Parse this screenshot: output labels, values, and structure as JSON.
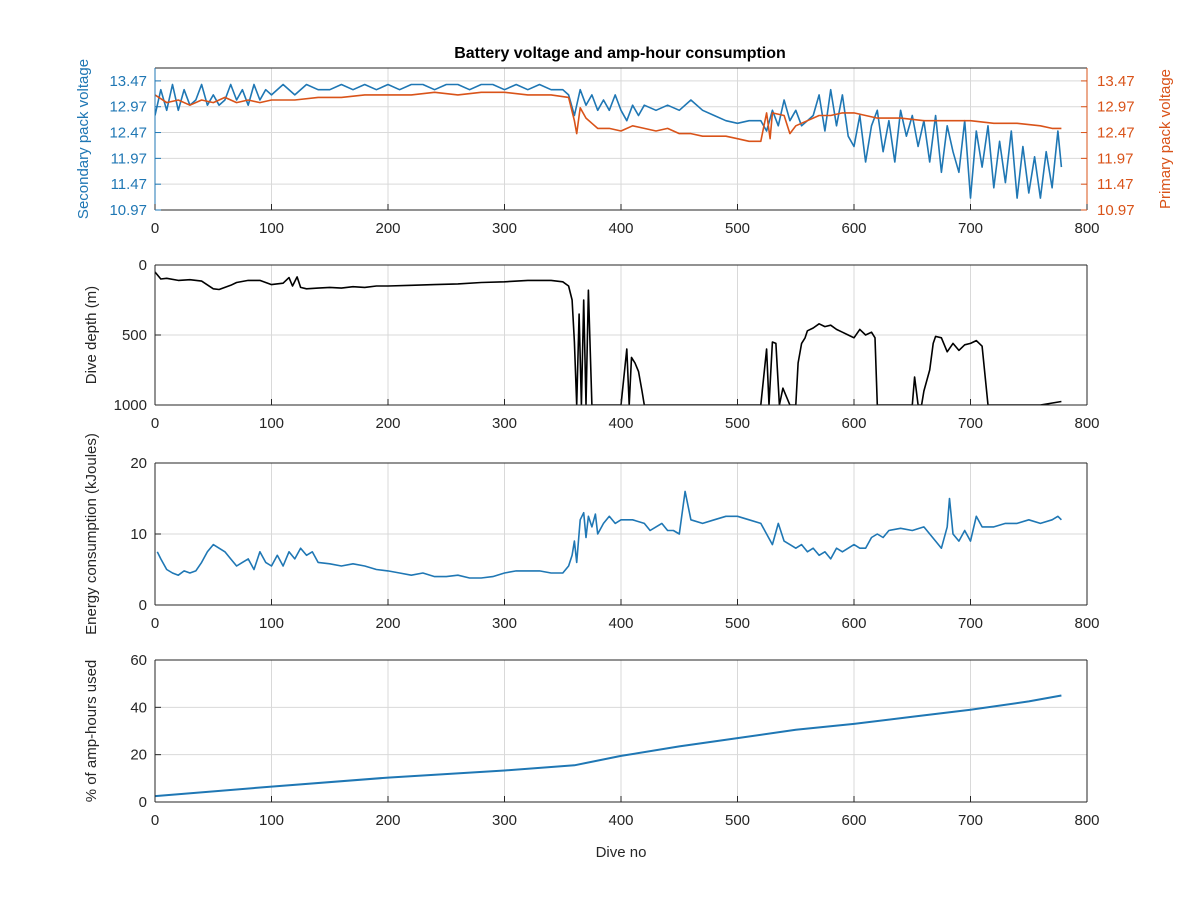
{
  "colors": {
    "blue": "#1f77b4",
    "orange": "#d95319",
    "black": "#000000",
    "grid": "#d9d9d9",
    "axis": "#262626"
  },
  "chart_data": [
    {
      "type": "line",
      "title": "Battery voltage and amp-hour consumption",
      "xlabel": "",
      "xlim": [
        0,
        800
      ],
      "xticks": [
        0,
        100,
        200,
        300,
        400,
        500,
        600,
        700,
        800
      ],
      "grid": true,
      "y_left": {
        "label": "Secondary pack voltage",
        "lim": [
          10.97,
          13.72
        ],
        "ticks": [
          10.97,
          11.47,
          11.97,
          12.47,
          12.97,
          13.47
        ],
        "color": "#1f77b4"
      },
      "y_right": {
        "label": "Primary pack voltage",
        "lim": [
          10.97,
          13.72
        ],
        "ticks": [
          10.97,
          11.47,
          11.97,
          12.47,
          12.97,
          13.47
        ],
        "color": "#d95319"
      },
      "series": [
        {
          "axis": "left",
          "color": "#1f77b4",
          "x": [
            0,
            5,
            10,
            15,
            20,
            25,
            30,
            35,
            40,
            45,
            50,
            55,
            60,
            65,
            70,
            75,
            80,
            85,
            90,
            95,
            100,
            110,
            120,
            130,
            140,
            150,
            160,
            170,
            180,
            190,
            200,
            210,
            220,
            230,
            240,
            250,
            260,
            270,
            280,
            290,
            300,
            310,
            320,
            330,
            340,
            350,
            355,
            360,
            365,
            370,
            375,
            380,
            385,
            390,
            395,
            400,
            405,
            410,
            415,
            420,
            430,
            440,
            450,
            460,
            470,
            480,
            490,
            500,
            510,
            520,
            525,
            530,
            535,
            540,
            545,
            550,
            555,
            560,
            565,
            570,
            575,
            580,
            585,
            590,
            595,
            600,
            605,
            610,
            615,
            620,
            625,
            630,
            635,
            640,
            645,
            650,
            655,
            660,
            665,
            670,
            675,
            680,
            685,
            690,
            695,
            700,
            705,
            710,
            715,
            720,
            725,
            730,
            735,
            740,
            745,
            750,
            755,
            760,
            765,
            770,
            775,
            778
          ],
          "y": [
            12.8,
            13.3,
            12.9,
            13.4,
            12.9,
            13.3,
            13.0,
            13.1,
            13.4,
            13.0,
            13.2,
            13.0,
            13.1,
            13.4,
            13.1,
            13.3,
            13.0,
            13.4,
            13.1,
            13.3,
            13.2,
            13.4,
            13.2,
            13.4,
            13.3,
            13.3,
            13.4,
            13.3,
            13.4,
            13.3,
            13.4,
            13.3,
            13.4,
            13.4,
            13.3,
            13.4,
            13.4,
            13.3,
            13.4,
            13.4,
            13.3,
            13.4,
            13.3,
            13.4,
            13.3,
            13.3,
            13.2,
            12.8,
            13.3,
            13.0,
            13.2,
            12.9,
            13.1,
            12.9,
            13.2,
            12.9,
            12.7,
            13.0,
            12.8,
            13.0,
            12.9,
            13.0,
            12.9,
            13.1,
            12.9,
            12.8,
            12.7,
            12.65,
            12.7,
            12.7,
            12.5,
            12.9,
            12.6,
            13.1,
            12.7,
            12.9,
            12.6,
            12.7,
            12.8,
            13.2,
            12.5,
            13.3,
            12.6,
            13.2,
            12.4,
            12.2,
            12.8,
            11.9,
            12.6,
            12.9,
            12.1,
            12.7,
            11.9,
            12.9,
            12.4,
            12.8,
            12.2,
            12.7,
            11.9,
            12.8,
            11.7,
            12.6,
            12.1,
            11.7,
            12.7,
            11.2,
            12.5,
            11.8,
            12.6,
            11.4,
            12.3,
            11.5,
            12.5,
            11.2,
            12.2,
            11.3,
            12.0,
            11.2,
            12.1,
            11.4,
            12.5,
            11.8
          ]
        },
        {
          "axis": "right",
          "color": "#d95319",
          "x": [
            0,
            10,
            20,
            30,
            40,
            50,
            60,
            70,
            80,
            90,
            100,
            120,
            140,
            160,
            180,
            200,
            220,
            240,
            260,
            280,
            300,
            320,
            340,
            355,
            360,
            362,
            365,
            370,
            375,
            380,
            390,
            400,
            410,
            420,
            430,
            440,
            450,
            460,
            470,
            480,
            490,
            500,
            510,
            520,
            525,
            528,
            530,
            540,
            545,
            550,
            560,
            570,
            580,
            590,
            600,
            620,
            640,
            660,
            680,
            700,
            720,
            740,
            760,
            770,
            778
          ],
          "y": [
            13.2,
            13.05,
            13.1,
            13.0,
            13.1,
            13.05,
            13.15,
            13.05,
            13.1,
            13.05,
            13.1,
            13.1,
            13.15,
            13.15,
            13.2,
            13.2,
            13.2,
            13.25,
            13.2,
            13.25,
            13.25,
            13.2,
            13.2,
            13.15,
            12.7,
            12.45,
            12.95,
            12.75,
            12.65,
            12.55,
            12.55,
            12.5,
            12.6,
            12.55,
            12.5,
            12.55,
            12.45,
            12.45,
            12.4,
            12.4,
            12.4,
            12.35,
            12.3,
            12.3,
            12.85,
            12.35,
            12.85,
            12.8,
            12.45,
            12.6,
            12.7,
            12.8,
            12.8,
            12.85,
            12.85,
            12.75,
            12.75,
            12.7,
            12.7,
            12.7,
            12.65,
            12.65,
            12.6,
            12.55,
            12.55
          ]
        }
      ]
    },
    {
      "type": "line",
      "title": "",
      "xlabel": "",
      "ylabel": "Dive depth (m)",
      "xlim": [
        0,
        800
      ],
      "xticks": [
        0,
        100,
        200,
        300,
        400,
        500,
        600,
        700,
        800
      ],
      "ylim": [
        0,
        1000
      ],
      "yticks": [
        0,
        500,
        1000
      ],
      "y_reversed": true,
      "grid": true,
      "series": [
        {
          "color": "#000000",
          "x": [
            0,
            5,
            10,
            20,
            30,
            40,
            50,
            55,
            60,
            65,
            70,
            80,
            90,
            100,
            110,
            115,
            118,
            122,
            125,
            130,
            140,
            150,
            160,
            170,
            180,
            190,
            200,
            220,
            240,
            260,
            280,
            300,
            320,
            340,
            350,
            355,
            358,
            360,
            362,
            364,
            366,
            368,
            370,
            372,
            375,
            378,
            380,
            390,
            400,
            405,
            407,
            409,
            412,
            415,
            418,
            420,
            430,
            440,
            460,
            480,
            500,
            520,
            525,
            527,
            530,
            533,
            536,
            539,
            545,
            550,
            552,
            555,
            558,
            560,
            565,
            570,
            575,
            580,
            585,
            590,
            595,
            600,
            605,
            610,
            615,
            618,
            620,
            630,
            640,
            650,
            652,
            655,
            658,
            660,
            665,
            668,
            670,
            675,
            680,
            685,
            690,
            695,
            700,
            705,
            710,
            715,
            718,
            720,
            740,
            760,
            778
          ],
          "y": [
            50,
            100,
            95,
            110,
            105,
            115,
            170,
            175,
            160,
            145,
            125,
            110,
            110,
            140,
            130,
            90,
            150,
            85,
            160,
            170,
            165,
            160,
            165,
            155,
            160,
            150,
            150,
            145,
            140,
            135,
            125,
            120,
            110,
            110,
            120,
            150,
            250,
            550,
            1000,
            350,
            1000,
            250,
            1000,
            180,
            1000,
            1000,
            1000,
            1000,
            1000,
            600,
            1000,
            660,
            700,
            760,
            900,
            1000,
            1000,
            1000,
            1000,
            1000,
            1000,
            1000,
            600,
            1000,
            550,
            560,
            1000,
            880,
            1000,
            1000,
            700,
            560,
            520,
            470,
            450,
            420,
            440,
            430,
            460,
            480,
            500,
            520,
            460,
            500,
            480,
            520,
            1000,
            1000,
            1000,
            1000,
            800,
            1000,
            1000,
            900,
            750,
            560,
            510,
            520,
            620,
            560,
            610,
            570,
            560,
            540,
            580,
            1000,
            1000,
            1000,
            1000,
            1000,
            975
          ]
        }
      ]
    },
    {
      "type": "line",
      "title": "",
      "xlabel": "",
      "ylabel": "Energy consumption (kJoules)",
      "xlim": [
        0,
        800
      ],
      "xticks": [
        0,
        100,
        200,
        300,
        400,
        500,
        600,
        700,
        800
      ],
      "ylim": [
        0,
        20
      ],
      "yticks": [
        0,
        10,
        20
      ],
      "grid": true,
      "series": [
        {
          "color": "#1f77b4",
          "x": [
            2,
            5,
            10,
            15,
            20,
            25,
            30,
            35,
            40,
            45,
            50,
            55,
            60,
            65,
            70,
            75,
            80,
            85,
            90,
            95,
            100,
            105,
            110,
            115,
            120,
            125,
            130,
            135,
            140,
            150,
            160,
            170,
            180,
            190,
            200,
            210,
            220,
            230,
            240,
            250,
            260,
            270,
            280,
            290,
            300,
            310,
            320,
            330,
            340,
            350,
            355,
            358,
            360,
            362,
            365,
            368,
            370,
            372,
            375,
            378,
            380,
            385,
            390,
            395,
            400,
            410,
            420,
            425,
            430,
            435,
            440,
            445,
            450,
            455,
            460,
            470,
            480,
            490,
            500,
            510,
            520,
            525,
            530,
            535,
            540,
            545,
            550,
            555,
            560,
            565,
            570,
            575,
            580,
            585,
            590,
            595,
            600,
            605,
            610,
            615,
            620,
            625,
            630,
            640,
            650,
            660,
            670,
            675,
            680,
            682,
            685,
            690,
            695,
            700,
            705,
            710,
            720,
            730,
            740,
            750,
            760,
            770,
            775,
            778
          ],
          "y": [
            7.5,
            6.5,
            5.0,
            4.5,
            4.2,
            4.8,
            4.5,
            4.8,
            6.0,
            7.5,
            8.5,
            8.0,
            7.5,
            6.5,
            5.5,
            6.0,
            6.5,
            5.0,
            7.5,
            6.0,
            5.5,
            7.0,
            5.5,
            7.5,
            6.5,
            8.0,
            7.0,
            7.5,
            6.0,
            5.8,
            5.5,
            5.8,
            5.5,
            5.0,
            4.8,
            4.5,
            4.2,
            4.5,
            4.0,
            4.0,
            4.2,
            3.8,
            3.8,
            4.0,
            4.5,
            4.8,
            4.8,
            4.8,
            4.5,
            4.5,
            5.5,
            7.0,
            9.0,
            6.0,
            12.0,
            13.0,
            9.5,
            12.5,
            11.0,
            12.8,
            10.0,
            11.5,
            12.5,
            11.5,
            12.0,
            12.0,
            11.5,
            10.5,
            11.0,
            11.5,
            10.5,
            10.5,
            10.0,
            16.0,
            12.0,
            11.5,
            12.0,
            12.5,
            12.5,
            12.0,
            11.5,
            10.0,
            8.5,
            11.5,
            9.0,
            8.5,
            8.0,
            8.5,
            7.5,
            8.0,
            7.0,
            7.5,
            6.5,
            8.0,
            7.5,
            8.0,
            8.5,
            8.0,
            8.0,
            9.5,
            10.0,
            9.5,
            10.5,
            10.8,
            10.5,
            11.0,
            9.0,
            8.0,
            11.0,
            15.0,
            10.0,
            9.0,
            10.5,
            9.0,
            12.5,
            11.0,
            11.0,
            11.5,
            11.5,
            12.0,
            11.5,
            12.0,
            12.5,
            12.0
          ]
        }
      ]
    },
    {
      "type": "line",
      "title": "",
      "xlabel": "Dive no",
      "ylabel": "% of amp-hours used",
      "xlim": [
        0,
        800
      ],
      "xticks": [
        0,
        100,
        200,
        300,
        400,
        500,
        600,
        700,
        800
      ],
      "ylim": [
        0,
        60
      ],
      "yticks": [
        0,
        20,
        40,
        60
      ],
      "grid": true,
      "series": [
        {
          "color": "#1f77b4",
          "x": [
            0,
            100,
            200,
            300,
            360,
            400,
            450,
            500,
            550,
            600,
            650,
            700,
            750,
            778
          ],
          "y": [
            2.5,
            6.5,
            10.3,
            13.3,
            15.5,
            19.5,
            23.5,
            27.0,
            30.5,
            33.0,
            36.0,
            39.0,
            42.5,
            45.0
          ]
        }
      ]
    }
  ]
}
